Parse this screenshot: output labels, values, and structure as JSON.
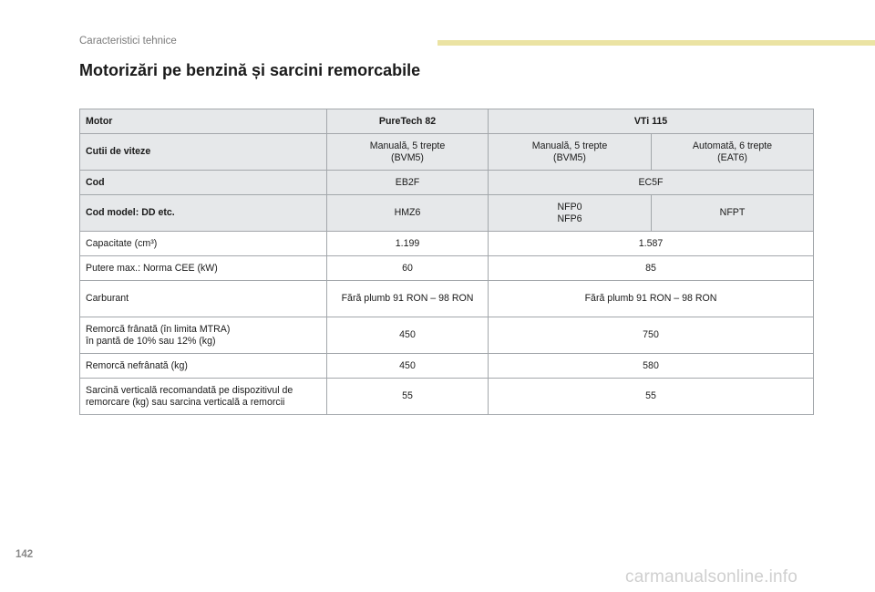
{
  "header": {
    "section_label": "Caracteristici tehnice"
  },
  "title": {
    "line1": "Motorizări pe benzină și",
    "line2": "sarcini remorcabile"
  },
  "table": {
    "motor": {
      "label": "Motor",
      "puretech": "PureTech 82",
      "vti": "VTi 115"
    },
    "gearbox": {
      "label": "Cutii de viteze",
      "puretech": [
        "Manuală, 5 trepte",
        "(BVM5)"
      ],
      "vti_manual": [
        "Manuală, 5 trepte",
        "(BVM5)"
      ],
      "vti_auto": [
        "Automată, 6 trepte",
        "(EAT6)"
      ]
    },
    "code": {
      "label": "Cod",
      "puretech": "EB2F",
      "vti": "EC5F"
    },
    "model_code": {
      "label": "Cod model: DD etc.",
      "puretech": "HMZ6",
      "vti_manual": [
        "NFP0",
        "NFP6"
      ],
      "vti_auto": "NFPT"
    },
    "rows": [
      {
        "label": [
          "Capacitate (cm³)"
        ],
        "puretech": "1.199",
        "vti": "1.587"
      },
      {
        "label": [
          "Putere max.: Norma CEE (kW)"
        ],
        "puretech": "60",
        "vti": "85"
      },
      {
        "label": [
          "Carburant"
        ],
        "puretech": "Fără plumb 91 RON – 98 RON",
        "vti": "Fără plumb 91 RON – 98 RON"
      },
      {
        "label": [
          "Remorcă frânată (în limita MTRA)",
          "în pantă de 10% sau 12% (kg)"
        ],
        "puretech": "450",
        "vti": "750"
      },
      {
        "label": [
          "Remorcă nefrânată (kg)"
        ],
        "puretech": "450",
        "vti": "580"
      },
      {
        "label": [
          "Sarcină verticală recomandată pe dispozitivul de",
          "remorcare (kg) sau sarcina verticală a remorcii"
        ],
        "puretech": "55",
        "vti": "55"
      }
    ]
  },
  "page_number": "142",
  "watermark": "carmanualsonline.info"
}
